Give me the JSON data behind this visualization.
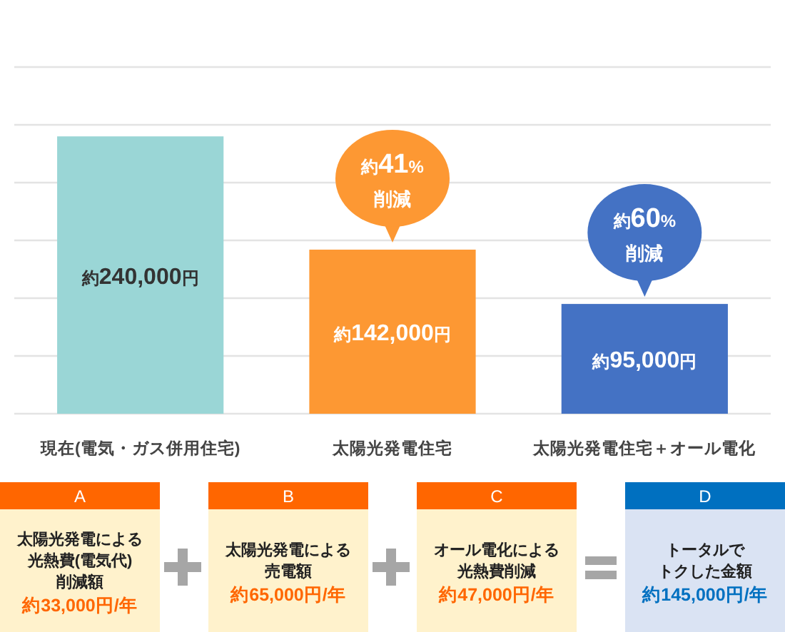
{
  "chart_data": [
    {
      "type": "bar",
      "categories": [
        "現在(電気・ガス併用住宅)",
        "太陽光発電住宅",
        "太陽光発電住宅＋オール電化"
      ],
      "values": [
        240000,
        142000,
        95000
      ],
      "colors": [
        "#9ad6d6",
        "#fd9833",
        "#4472c4"
      ],
      "value_labels": [
        "約240,000円",
        "約142,000円",
        "約95,000円"
      ],
      "ylim": [
        0,
        300000
      ],
      "yticks": [
        {
          "value": 0,
          "label": null
        },
        {
          "value": 50000,
          "label": null
        },
        {
          "value": 100000,
          "label": null
        },
        {
          "value": 150000,
          "label": null
        },
        {
          "value": 200000,
          "label": null
        },
        {
          "value": 250000,
          "label": null
        },
        {
          "value": 300000,
          "label": null
        }
      ],
      "grid": "y",
      "tick_labels": "x",
      "annotations": [
        {
          "text": "約41%\n削減",
          "x": "太陽光発電住宅",
          "y": 142000
        },
        {
          "text": "約60%\n削減",
          "x": "太陽光発電住宅＋オール電化",
          "y": 95000
        }
      ]
    },
    {
      "type": "other",
      "color": "#ff6600",
      "annotations": [
        "A",
        "太陽光発電による",
        "光熱費(電気代)",
        "削減額",
        "約33,000円/年"
      ]
    },
    {
      "type": "other",
      "color": "#ff6600",
      "annotations": [
        "B",
        "太陽光発電による",
        "売電額",
        "約65,000円/年"
      ]
    },
    {
      "type": "other",
      "color": "#ff6600",
      "annotations": [
        "C",
        "オール電化による",
        "光熱費削減",
        "約47,000円/年"
      ]
    },
    {
      "type": "other",
      "color": "#0070c0",
      "annotations": [
        "D",
        "トータルで",
        "トクした金額",
        "約145,000円/年"
      ]
    }
  ]
}
